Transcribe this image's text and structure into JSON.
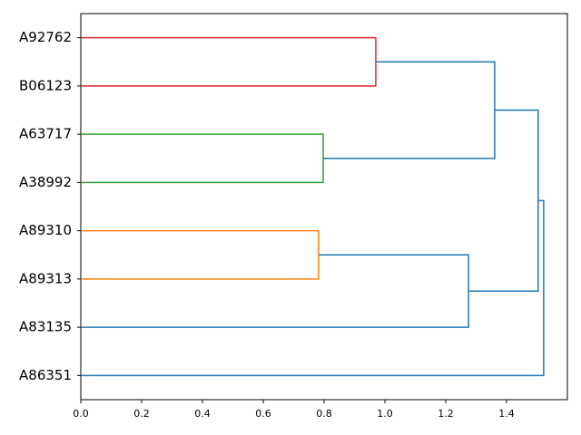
{
  "chart_data": {
    "type": "dendrogram",
    "orientation": "left",
    "leaves": [
      "A92762",
      "B06123",
      "A63717",
      "A38992",
      "A89310",
      "A89313",
      "A83135",
      "A86351"
    ],
    "merges": [
      {
        "children": [
          4,
          5
        ],
        "height": 0.782,
        "color": "#ff7f0e"
      },
      {
        "children": [
          2,
          3
        ],
        "height": 0.797,
        "color": "#2ca02c"
      },
      {
        "children": [
          0,
          1
        ],
        "height": 0.97,
        "color": "#d62728"
      },
      {
        "children": [
          8,
          6
        ],
        "height": 1.275,
        "color": "#1f77b4"
      },
      {
        "children": [
          10,
          9
        ],
        "height": 1.361,
        "color": "#1f77b4"
      },
      {
        "children": [
          12,
          11
        ],
        "height": 1.504,
        "color": "#1f77b4"
      },
      {
        "children": [
          13,
          7
        ],
        "height": 1.522,
        "color": "#1f77b4"
      }
    ],
    "xlim": [
      0,
      1.6
    ],
    "xticks": [
      {
        "value": 0,
        "label": "0.0"
      },
      0.2,
      0.4,
      0.6,
      0.8,
      {
        "value": 1,
        "label": "1.0"
      },
      1.2,
      1.4
    ]
  }
}
